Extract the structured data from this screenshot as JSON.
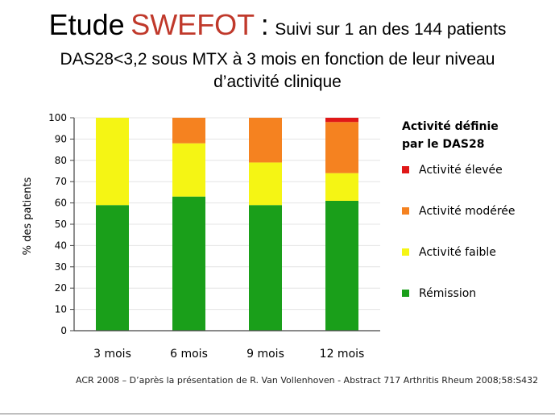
{
  "title": {
    "prefix": "Etude",
    "study": "SWEFOT",
    "colon": ":",
    "subtitle_part1": "Suivi sur 1 an des 144 patients",
    "subtitle_part2": "DAS28<3,2 sous MTX à 3 mois en fonction de leur niveau",
    "subtitle_part3": "d’activité clinique"
  },
  "colors": {
    "study_title": "#c0392b",
    "remission": "#1a9f1a",
    "faible": "#f5f514",
    "moderee": "#f58220",
    "elevee": "#e01818"
  },
  "legend": {
    "title_line1": "Activité définie",
    "title_line2": "par le DAS28",
    "items": [
      {
        "label": "Activité élevée",
        "color": "#e01818"
      },
      {
        "label": "Activité modérée",
        "color": "#f58220"
      },
      {
        "label": "Activité faible",
        "color": "#f5f514"
      },
      {
        "label": "Rémission",
        "color": "#1a9f1a"
      }
    ]
  },
  "source": "ACR 2008 – D’après la présentation de R. Van Vollenhoven - Abstract 717 Arthritis Rheum 2008;58:S432",
  "chart_data": {
    "type": "bar",
    "stacked": true,
    "ylabel": "% des patients",
    "xlabel": "",
    "ylim": [
      0,
      100
    ],
    "yticks": [
      0,
      10,
      20,
      30,
      40,
      50,
      60,
      70,
      80,
      90,
      100
    ],
    "categories": [
      "3 mois",
      "6 mois",
      "9 mois",
      "12 mois"
    ],
    "series": [
      {
        "name": "Rémission",
        "color": "#1a9f1a",
        "values": [
          59,
          63,
          59,
          61
        ]
      },
      {
        "name": "Activité faible",
        "color": "#f5f514",
        "values": [
          41,
          25,
          20,
          13
        ]
      },
      {
        "name": "Activité modérée",
        "color": "#f58220",
        "values": [
          0,
          12,
          21,
          24
        ]
      },
      {
        "name": "Activité élevée",
        "color": "#e01818",
        "values": [
          0,
          0,
          0,
          2
        ]
      }
    ]
  }
}
